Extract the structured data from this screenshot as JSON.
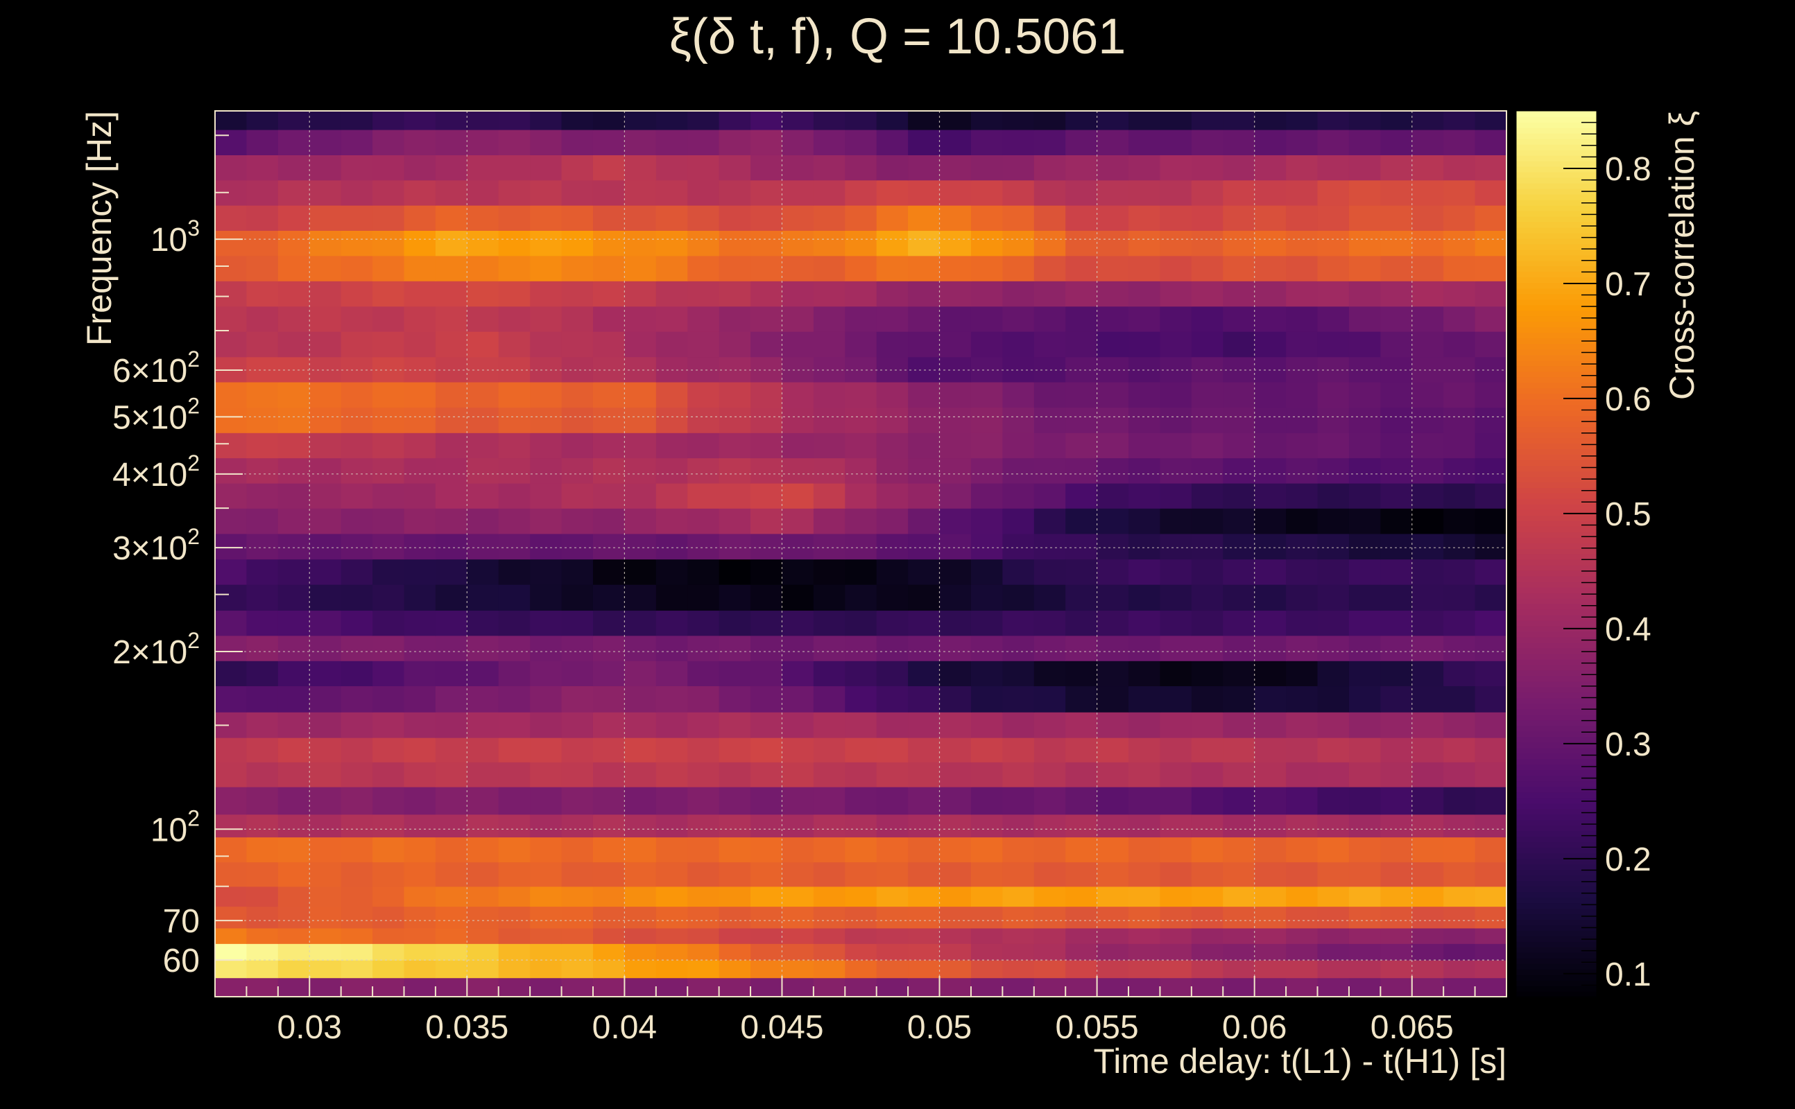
{
  "header": {
    "title": "ξ(δ t, f), Q = 10.5061"
  },
  "colors": {
    "background": "#000000",
    "text": "#f2e6c9",
    "grid": "#d8d0c0",
    "colormap": [
      "#000004",
      "#1b0c41",
      "#4a0c6b",
      "#781c6d",
      "#a52c60",
      "#cf4446",
      "#ed6925",
      "#fb9b06",
      "#f7d13d",
      "#fcffa4"
    ],
    "colormap_name": "inferno-like"
  },
  "chart_data": {
    "type": "heatmap",
    "title": "ξ(δ t, f), Q = 10.5061",
    "xlabel": "Time delay: t(L1) - t(H1) [s]",
    "ylabel": "Frequency [Hz]",
    "colorbar_label": "Cross-correlation ξ",
    "x_range": [
      0.027,
      0.068
    ],
    "y_range": [
      52,
      1650
    ],
    "y_scale": "log",
    "z_range": [
      0.08,
      0.85
    ],
    "grid": true,
    "x_ticks": [
      {
        "value": 0.03,
        "label": "0.03"
      },
      {
        "value": 0.035,
        "label": "0.035"
      },
      {
        "value": 0.04,
        "label": "0.04"
      },
      {
        "value": 0.045,
        "label": "0.045"
      },
      {
        "value": 0.05,
        "label": "0.05"
      },
      {
        "value": 0.055,
        "label": "0.055"
      },
      {
        "value": 0.06,
        "label": "0.06"
      },
      {
        "value": 0.065,
        "label": "0.065"
      }
    ],
    "y_ticks": [
      {
        "value": 60,
        "label": "60",
        "exp": ""
      },
      {
        "value": 70,
        "label": "70",
        "exp": ""
      },
      {
        "value": 100,
        "label": "10",
        "exp": "2"
      },
      {
        "value": 200,
        "label": "2×10",
        "exp": "2"
      },
      {
        "value": 300,
        "label": "3×10",
        "exp": "2"
      },
      {
        "value": 400,
        "label": "4×10",
        "exp": "2"
      },
      {
        "value": 500,
        "label": "5×10",
        "exp": "2"
      },
      {
        "value": 600,
        "label": "6×10",
        "exp": "2"
      },
      {
        "value": 1000,
        "label": "10",
        "exp": "3"
      }
    ],
    "colorbar_ticks": [
      {
        "value": 0.1,
        "label": "0.1"
      },
      {
        "value": 0.2,
        "label": "0.2"
      },
      {
        "value": 0.3,
        "label": "0.3"
      },
      {
        "value": 0.4,
        "label": "0.4"
      },
      {
        "value": 0.5,
        "label": "0.5"
      },
      {
        "value": 0.6,
        "label": "0.6"
      },
      {
        "value": 0.7,
        "label": "0.7"
      },
      {
        "value": 0.8,
        "label": "0.8"
      }
    ],
    "columns": 41,
    "frequency_bands": [
      {
        "f_low": 52,
        "f_high": 56,
        "profile": [
          [
            0.027,
            0.36
          ],
          [
            0.068,
            0.34
          ]
        ]
      },
      {
        "f_low": 56,
        "f_high": 60,
        "profile": [
          [
            0.027,
            0.8
          ],
          [
            0.033,
            0.76
          ],
          [
            0.04,
            0.7
          ],
          [
            0.045,
            0.64
          ],
          [
            0.05,
            0.56
          ],
          [
            0.055,
            0.5
          ],
          [
            0.06,
            0.46
          ],
          [
            0.068,
            0.44
          ]
        ]
      },
      {
        "f_low": 60,
        "f_high": 64,
        "profile": [
          [
            0.027,
            0.85
          ],
          [
            0.033,
            0.79
          ],
          [
            0.04,
            0.68
          ],
          [
            0.045,
            0.56
          ],
          [
            0.05,
            0.48
          ],
          [
            0.055,
            0.4
          ],
          [
            0.06,
            0.36
          ],
          [
            0.068,
            0.3
          ]
        ]
      },
      {
        "f_low": 64,
        "f_high": 68,
        "profile": [
          [
            0.027,
            0.62
          ],
          [
            0.035,
            0.58
          ],
          [
            0.045,
            0.5
          ],
          [
            0.055,
            0.42
          ],
          [
            0.068,
            0.36
          ]
        ]
      },
      {
        "f_low": 68,
        "f_high": 74,
        "profile": [
          [
            0.027,
            0.55
          ],
          [
            0.035,
            0.58
          ],
          [
            0.045,
            0.57
          ],
          [
            0.068,
            0.54
          ]
        ]
      },
      {
        "f_low": 74,
        "f_high": 80,
        "profile": [
          [
            0.027,
            0.52
          ],
          [
            0.035,
            0.62
          ],
          [
            0.045,
            0.68
          ],
          [
            0.068,
            0.7
          ]
        ]
      },
      {
        "f_low": 80,
        "f_high": 88,
        "profile": [
          [
            0.027,
            0.58
          ],
          [
            0.068,
            0.55
          ]
        ]
      },
      {
        "f_low": 88,
        "f_high": 97,
        "profile": [
          [
            0.027,
            0.6
          ],
          [
            0.068,
            0.58
          ]
        ]
      },
      {
        "f_low": 97,
        "f_high": 106,
        "profile": [
          [
            0.027,
            0.44
          ],
          [
            0.068,
            0.42
          ]
        ]
      },
      {
        "f_low": 106,
        "f_high": 118,
        "profile": [
          [
            0.027,
            0.36
          ],
          [
            0.045,
            0.34
          ],
          [
            0.055,
            0.3
          ],
          [
            0.068,
            0.2
          ]
        ]
      },
      {
        "f_low": 118,
        "f_high": 130,
        "profile": [
          [
            0.027,
            0.46
          ],
          [
            0.045,
            0.47
          ],
          [
            0.068,
            0.42
          ]
        ]
      },
      {
        "f_low": 130,
        "f_high": 143,
        "profile": [
          [
            0.027,
            0.48
          ],
          [
            0.045,
            0.5
          ],
          [
            0.068,
            0.44
          ]
        ]
      },
      {
        "f_low": 143,
        "f_high": 158,
        "profile": [
          [
            0.027,
            0.4
          ],
          [
            0.045,
            0.43
          ],
          [
            0.068,
            0.38
          ]
        ]
      },
      {
        "f_low": 158,
        "f_high": 175,
        "profile": [
          [
            0.027,
            0.26
          ],
          [
            0.04,
            0.38
          ],
          [
            0.045,
            0.32
          ],
          [
            0.05,
            0.2
          ],
          [
            0.055,
            0.14
          ],
          [
            0.06,
            0.14
          ],
          [
            0.068,
            0.2
          ]
        ]
      },
      {
        "f_low": 175,
        "f_high": 193,
        "profile": [
          [
            0.027,
            0.2
          ],
          [
            0.04,
            0.35
          ],
          [
            0.045,
            0.28
          ],
          [
            0.05,
            0.16
          ],
          [
            0.055,
            0.12
          ],
          [
            0.06,
            0.1
          ],
          [
            0.068,
            0.22
          ]
        ]
      },
      {
        "f_low": 193,
        "f_high": 213,
        "profile": [
          [
            0.027,
            0.36
          ],
          [
            0.045,
            0.32
          ],
          [
            0.068,
            0.32
          ]
        ]
      },
      {
        "f_low": 213,
        "f_high": 235,
        "profile": [
          [
            0.027,
            0.28
          ],
          [
            0.035,
            0.22
          ],
          [
            0.045,
            0.2
          ],
          [
            0.055,
            0.22
          ],
          [
            0.068,
            0.24
          ]
        ]
      },
      {
        "f_low": 235,
        "f_high": 260,
        "profile": [
          [
            0.027,
            0.22
          ],
          [
            0.035,
            0.16
          ],
          [
            0.04,
            0.12
          ],
          [
            0.045,
            0.1
          ],
          [
            0.05,
            0.12
          ],
          [
            0.055,
            0.18
          ],
          [
            0.068,
            0.2
          ]
        ]
      },
      {
        "f_low": 260,
        "f_high": 287,
        "profile": [
          [
            0.027,
            0.26
          ],
          [
            0.035,
            0.16
          ],
          [
            0.04,
            0.1
          ],
          [
            0.045,
            0.09
          ],
          [
            0.05,
            0.12
          ],
          [
            0.055,
            0.22
          ],
          [
            0.068,
            0.22
          ]
        ]
      },
      {
        "f_low": 287,
        "f_high": 317,
        "profile": [
          [
            0.027,
            0.3
          ],
          [
            0.04,
            0.3
          ],
          [
            0.045,
            0.32
          ],
          [
            0.05,
            0.28
          ],
          [
            0.055,
            0.2
          ],
          [
            0.06,
            0.18
          ],
          [
            0.068,
            0.14
          ]
        ]
      },
      {
        "f_low": 317,
        "f_high": 350,
        "profile": [
          [
            0.027,
            0.36
          ],
          [
            0.04,
            0.38
          ],
          [
            0.045,
            0.44
          ],
          [
            0.05,
            0.3
          ],
          [
            0.055,
            0.16
          ],
          [
            0.06,
            0.12
          ],
          [
            0.068,
            0.08
          ]
        ]
      },
      {
        "f_low": 350,
        "f_high": 386,
        "profile": [
          [
            0.027,
            0.38
          ],
          [
            0.04,
            0.44
          ],
          [
            0.045,
            0.52
          ],
          [
            0.05,
            0.36
          ],
          [
            0.055,
            0.24
          ],
          [
            0.06,
            0.2
          ],
          [
            0.068,
            0.2
          ]
        ]
      },
      {
        "f_low": 386,
        "f_high": 426,
        "profile": [
          [
            0.027,
            0.42
          ],
          [
            0.04,
            0.44
          ],
          [
            0.045,
            0.46
          ],
          [
            0.05,
            0.36
          ],
          [
            0.055,
            0.3
          ],
          [
            0.06,
            0.28
          ],
          [
            0.068,
            0.26
          ]
        ]
      },
      {
        "f_low": 426,
        "f_high": 470,
        "profile": [
          [
            0.027,
            0.5
          ],
          [
            0.035,
            0.44
          ],
          [
            0.045,
            0.4
          ],
          [
            0.055,
            0.34
          ],
          [
            0.068,
            0.28
          ]
        ]
      },
      {
        "f_low": 470,
        "f_high": 519,
        "profile": [
          [
            0.027,
            0.62
          ],
          [
            0.035,
            0.56
          ],
          [
            0.04,
            0.56
          ],
          [
            0.045,
            0.44
          ],
          [
            0.055,
            0.32
          ],
          [
            0.068,
            0.28
          ]
        ]
      },
      {
        "f_low": 519,
        "f_high": 573,
        "profile": [
          [
            0.027,
            0.62
          ],
          [
            0.035,
            0.58
          ],
          [
            0.04,
            0.58
          ],
          [
            0.045,
            0.44
          ],
          [
            0.055,
            0.3
          ],
          [
            0.068,
            0.3
          ]
        ]
      },
      {
        "f_low": 573,
        "f_high": 632,
        "profile": [
          [
            0.027,
            0.5
          ],
          [
            0.035,
            0.5
          ],
          [
            0.045,
            0.38
          ],
          [
            0.05,
            0.26
          ],
          [
            0.055,
            0.28
          ],
          [
            0.068,
            0.3
          ]
        ]
      },
      {
        "f_low": 632,
        "f_high": 698,
        "profile": [
          [
            0.027,
            0.44
          ],
          [
            0.035,
            0.5
          ],
          [
            0.045,
            0.36
          ],
          [
            0.05,
            0.28
          ],
          [
            0.055,
            0.26
          ],
          [
            0.06,
            0.24
          ],
          [
            0.068,
            0.32
          ]
        ]
      },
      {
        "f_low": 698,
        "f_high": 770,
        "profile": [
          [
            0.027,
            0.46
          ],
          [
            0.035,
            0.48
          ],
          [
            0.045,
            0.38
          ],
          [
            0.05,
            0.3
          ],
          [
            0.055,
            0.28
          ],
          [
            0.06,
            0.26
          ],
          [
            0.068,
            0.36
          ]
        ]
      },
      {
        "f_low": 770,
        "f_high": 850,
        "profile": [
          [
            0.027,
            0.48
          ],
          [
            0.035,
            0.52
          ],
          [
            0.045,
            0.44
          ],
          [
            0.05,
            0.38
          ],
          [
            0.055,
            0.38
          ],
          [
            0.068,
            0.42
          ]
        ]
      },
      {
        "f_low": 850,
        "f_high": 938,
        "profile": [
          [
            0.027,
            0.56
          ],
          [
            0.035,
            0.64
          ],
          [
            0.04,
            0.64
          ],
          [
            0.045,
            0.56
          ],
          [
            0.05,
            0.62
          ],
          [
            0.055,
            0.52
          ],
          [
            0.068,
            0.58
          ]
        ]
      },
      {
        "f_low": 938,
        "f_high": 1035,
        "profile": [
          [
            0.027,
            0.56
          ],
          [
            0.035,
            0.7
          ],
          [
            0.04,
            0.66
          ],
          [
            0.045,
            0.6
          ],
          [
            0.05,
            0.72
          ],
          [
            0.055,
            0.56
          ],
          [
            0.068,
            0.62
          ]
        ]
      },
      {
        "f_low": 1035,
        "f_high": 1142,
        "profile": [
          [
            0.027,
            0.48
          ],
          [
            0.035,
            0.58
          ],
          [
            0.045,
            0.52
          ],
          [
            0.05,
            0.64
          ],
          [
            0.055,
            0.5
          ],
          [
            0.068,
            0.56
          ]
        ]
      },
      {
        "f_low": 1142,
        "f_high": 1260,
        "profile": [
          [
            0.027,
            0.44
          ],
          [
            0.035,
            0.46
          ],
          [
            0.045,
            0.46
          ],
          [
            0.05,
            0.52
          ],
          [
            0.055,
            0.44
          ],
          [
            0.065,
            0.54
          ],
          [
            0.068,
            0.5
          ]
        ]
      },
      {
        "f_low": 1260,
        "f_high": 1390,
        "profile": [
          [
            0.027,
            0.4
          ],
          [
            0.035,
            0.42
          ],
          [
            0.04,
            0.48
          ],
          [
            0.045,
            0.4
          ],
          [
            0.05,
            0.36
          ],
          [
            0.055,
            0.4
          ],
          [
            0.068,
            0.46
          ]
        ]
      },
      {
        "f_low": 1390,
        "f_high": 1534,
        "profile": [
          [
            0.027,
            0.28
          ],
          [
            0.035,
            0.38
          ],
          [
            0.04,
            0.34
          ],
          [
            0.045,
            0.38
          ],
          [
            0.05,
            0.24
          ],
          [
            0.055,
            0.3
          ],
          [
            0.068,
            0.3
          ]
        ]
      },
      {
        "f_low": 1534,
        "f_high": 1650,
        "profile": [
          [
            0.027,
            0.16
          ],
          [
            0.035,
            0.22
          ],
          [
            0.04,
            0.14
          ],
          [
            0.045,
            0.24
          ],
          [
            0.05,
            0.12
          ],
          [
            0.055,
            0.16
          ],
          [
            0.068,
            0.18
          ]
        ]
      }
    ]
  }
}
